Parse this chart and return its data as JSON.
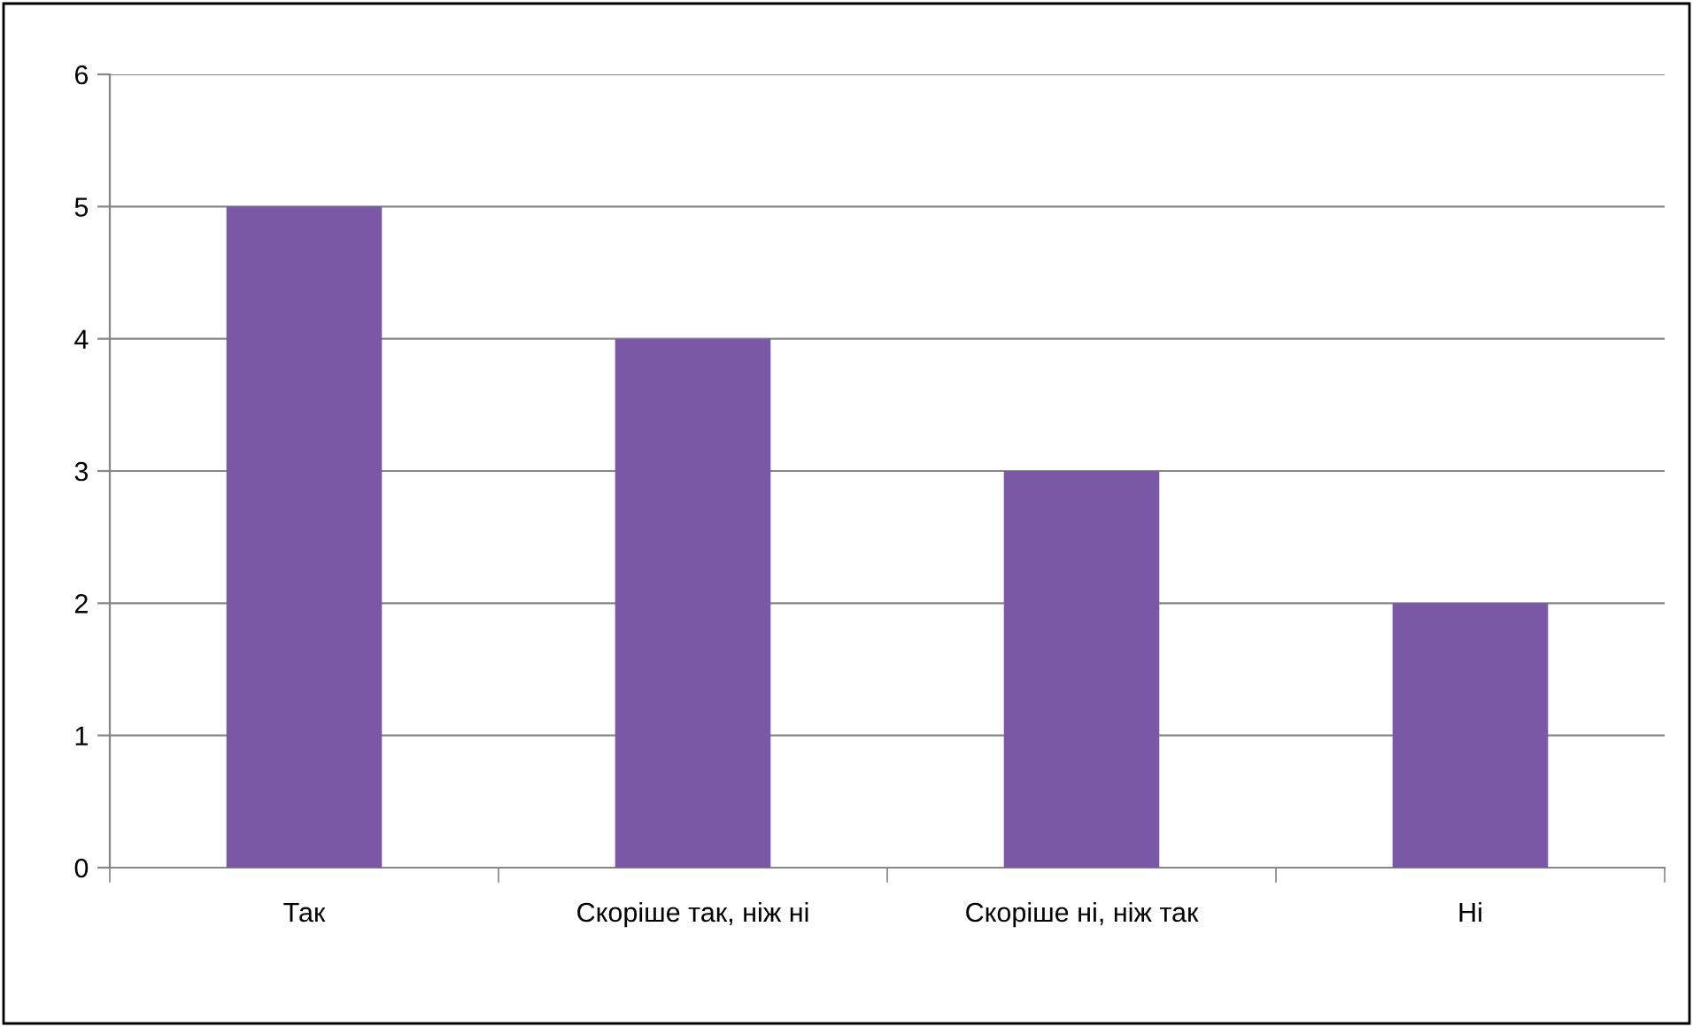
{
  "chart_data": {
    "type": "bar",
    "categories": [
      "Так",
      "Скоріше так, ніж ні",
      "Скоріше ні, ніж так",
      "Ні"
    ],
    "values": [
      5,
      4,
      3,
      2
    ],
    "color": "#7b58a6",
    "ylim": [
      0,
      6
    ],
    "yticks": [
      0,
      1,
      2,
      3,
      4,
      5,
      6
    ],
    "grid": "y",
    "legend": false
  }
}
